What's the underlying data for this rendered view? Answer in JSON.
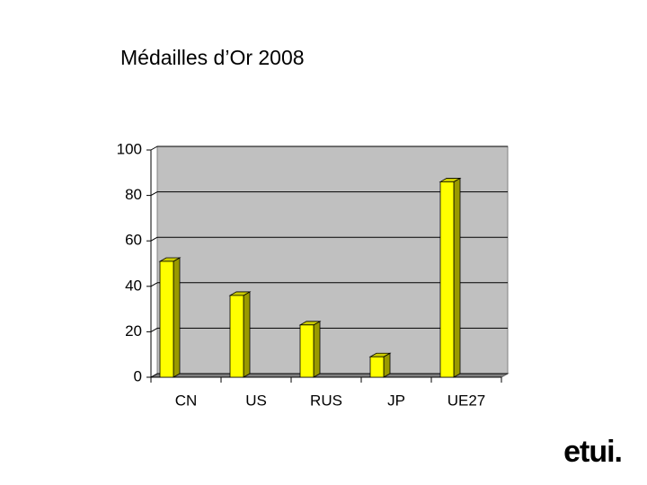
{
  "chart_data": {
    "type": "bar",
    "title": "Médailles d’Or 2008",
    "categories": [
      "CN",
      "US",
      "RUS",
      "JP",
      "UE27"
    ],
    "values": [
      51,
      36,
      23,
      9,
      86
    ],
    "color": "#ffff00",
    "ylim": [
      0,
      100
    ],
    "yticks": [
      0,
      20,
      40,
      60,
      80,
      100
    ],
    "grid": true
  },
  "logo": "etui."
}
